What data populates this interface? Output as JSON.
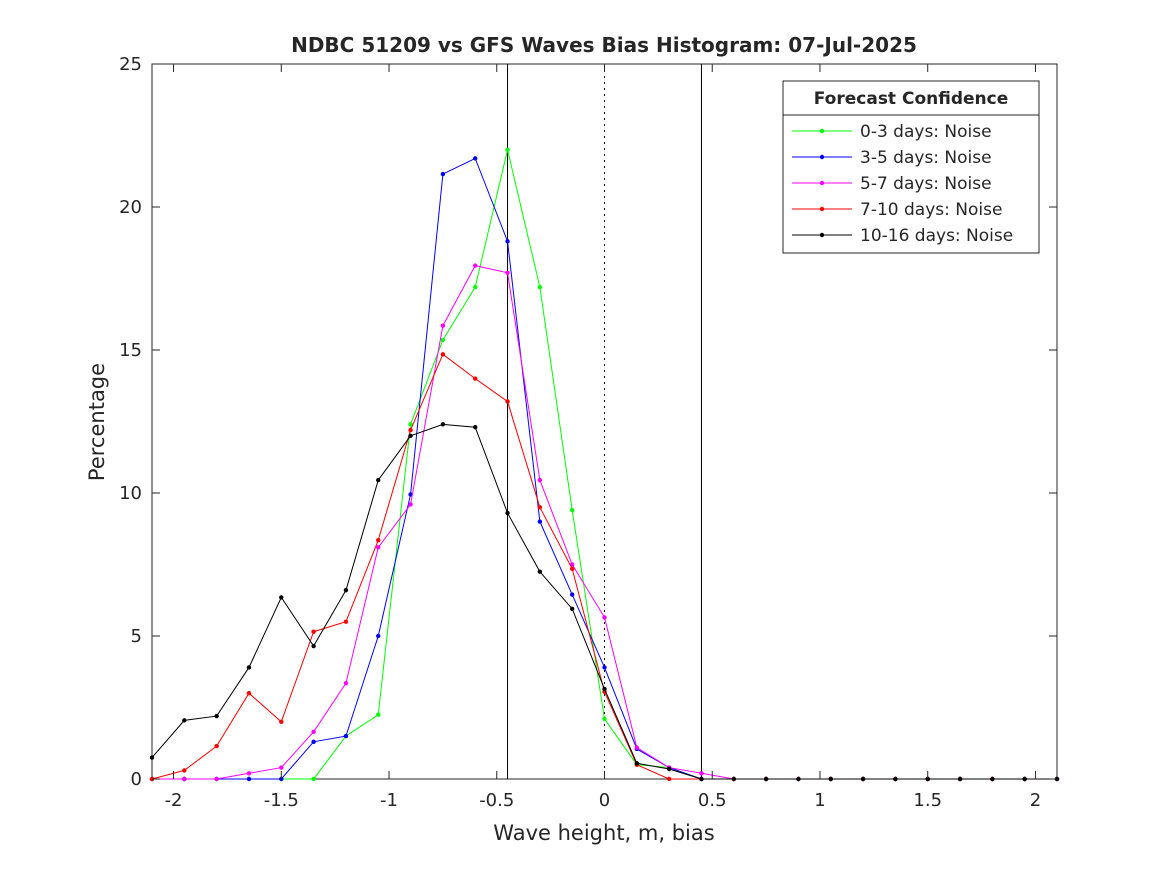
{
  "chart_data": {
    "type": "line",
    "title": "NDBC 51209 vs GFS Waves Bias Histogram: 07-Jul-2025",
    "xlabel": "Wave height, m, bias",
    "ylabel": "Percentage",
    "xlim": [
      -2.1,
      2.1
    ],
    "ylim": [
      0,
      25
    ],
    "xticks": [
      -2,
      -1.5,
      -1,
      -0.5,
      0,
      0.5,
      1,
      1.5,
      2
    ],
    "xtick_labels": [
      "-2",
      "-1.5",
      "-1",
      "-0.5",
      "0",
      "0.5",
      "1",
      "1.5",
      "2"
    ],
    "yticks": [
      0,
      5,
      10,
      15,
      20,
      25
    ],
    "ytick_labels": [
      "0",
      "5",
      "10",
      "15",
      "20",
      "25"
    ],
    "grid": false,
    "legend_title": "Forecast Confidence",
    "legend_position": "top-right",
    "vertical_lines": [
      {
        "x": -0.45,
        "style": "solid"
      },
      {
        "x": 0,
        "style": "dotted"
      },
      {
        "x": 0.45,
        "style": "solid"
      }
    ],
    "x": [
      -2.1,
      -1.95,
      -1.8,
      -1.65,
      -1.5,
      -1.35,
      -1.2,
      -1.05,
      -0.9,
      -0.75,
      -0.6,
      -0.45,
      -0.3,
      -0.15,
      0,
      0.15,
      0.3,
      0.45,
      0.6,
      0.75,
      0.9,
      1.05,
      1.2,
      1.35,
      1.5,
      1.65,
      1.8,
      1.95,
      2.1
    ],
    "series": [
      {
        "name": "0-3 days: Noise",
        "color": "#00ff00",
        "values": [
          0,
          0,
          0,
          0,
          0,
          0,
          1.5,
          2.25,
          12.4,
          15.35,
          17.2,
          22.0,
          17.2,
          9.4,
          2.1,
          0.5,
          0.4,
          0,
          0,
          0,
          0,
          0,
          0,
          0,
          0,
          0,
          0,
          0,
          0
        ]
      },
      {
        "name": "3-5 days: Noise",
        "color": "#0000ff",
        "values": [
          0,
          0,
          0,
          0,
          0,
          1.3,
          1.5,
          5.0,
          9.95,
          21.15,
          21.7,
          18.8,
          9.0,
          6.45,
          3.9,
          1.05,
          0.4,
          0,
          0,
          0,
          0,
          0,
          0,
          0,
          0,
          0,
          0,
          0,
          0
        ]
      },
      {
        "name": "5-7 days: Noise",
        "color": "#ff00ff",
        "values": [
          0,
          0,
          0,
          0.2,
          0.4,
          1.65,
          3.35,
          8.1,
          9.6,
          15.85,
          17.95,
          17.7,
          10.45,
          7.5,
          5.65,
          1.1,
          0.4,
          0.2,
          0,
          0,
          0,
          0,
          0,
          0,
          0,
          0,
          0,
          0,
          0
        ]
      },
      {
        "name": "7-10 days: Noise",
        "color": "#ff0000",
        "values": [
          0,
          0.3,
          1.15,
          3.0,
          2.0,
          5.15,
          5.5,
          8.35,
          12.2,
          14.85,
          14.0,
          13.2,
          9.5,
          7.35,
          3.05,
          0.5,
          0,
          0,
          0,
          0,
          0,
          0,
          0,
          0,
          0,
          0,
          0,
          0,
          0
        ]
      },
      {
        "name": "10-16 days: Noise",
        "color": "#000000",
        "values": [
          0.75,
          2.05,
          2.2,
          3.9,
          6.35,
          4.65,
          6.6,
          10.45,
          12.0,
          12.4,
          12.3,
          9.3,
          7.25,
          5.95,
          3.15,
          0.55,
          0.35,
          0,
          0,
          0,
          0,
          0,
          0,
          0,
          0,
          0,
          0,
          0,
          0
        ]
      }
    ]
  }
}
